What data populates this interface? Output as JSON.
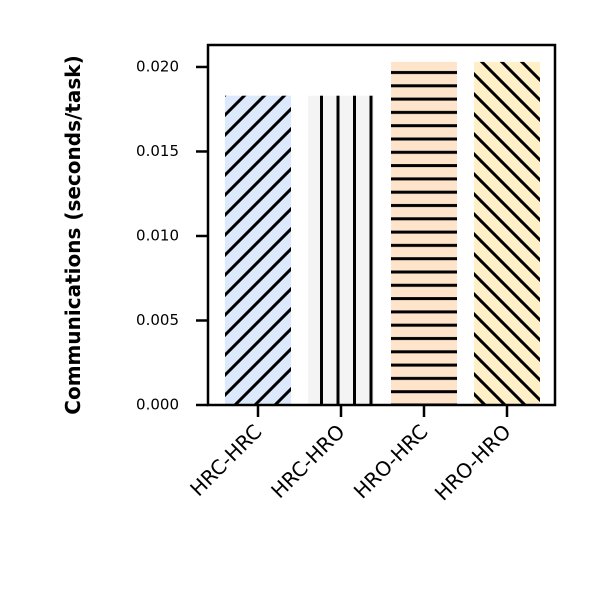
{
  "chart_data": {
    "type": "bar",
    "title": "",
    "xlabel": "",
    "ylabel": "Communications (seconds/task)",
    "categories": [
      "HRC-HRC",
      "HRC-HRO",
      "HRO-HRC",
      "HRO-HRO"
    ],
    "values": [
      0.0183,
      0.0183,
      0.0203,
      0.0203
    ],
    "ylim": [
      0,
      0.0213
    ],
    "yticks": [
      "0.000",
      "0.005",
      "0.010",
      "0.015",
      "0.020"
    ],
    "bar_colors": [
      "#dce8fb",
      "#f4f4f4",
      "#ffe4cc",
      "#fff0c8"
    ],
    "bar_hatches": [
      "forward-diagonal",
      "vertical",
      "horizontal",
      "back-diagonal"
    ],
    "grid": false
  }
}
